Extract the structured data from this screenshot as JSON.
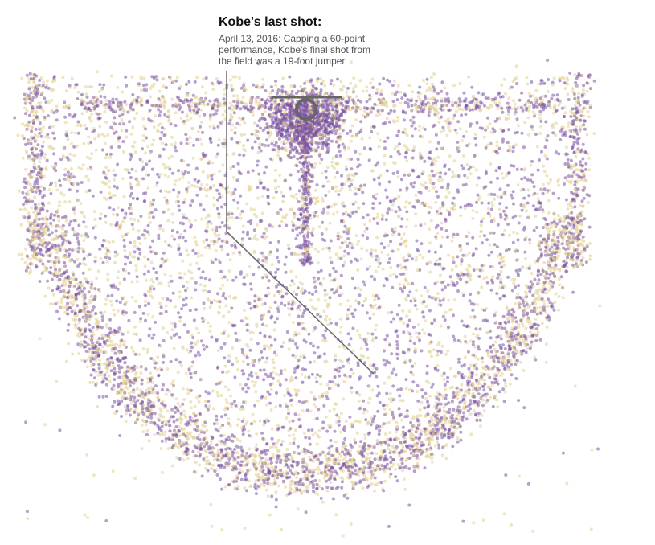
{
  "annotation": {
    "title": "Kobe's last shot:",
    "lines": [
      "April 13, 2016: Capping a 60-point",
      "performance, Kobe's final shot from",
      "the field was a 19-foot jumper."
    ]
  }
}
